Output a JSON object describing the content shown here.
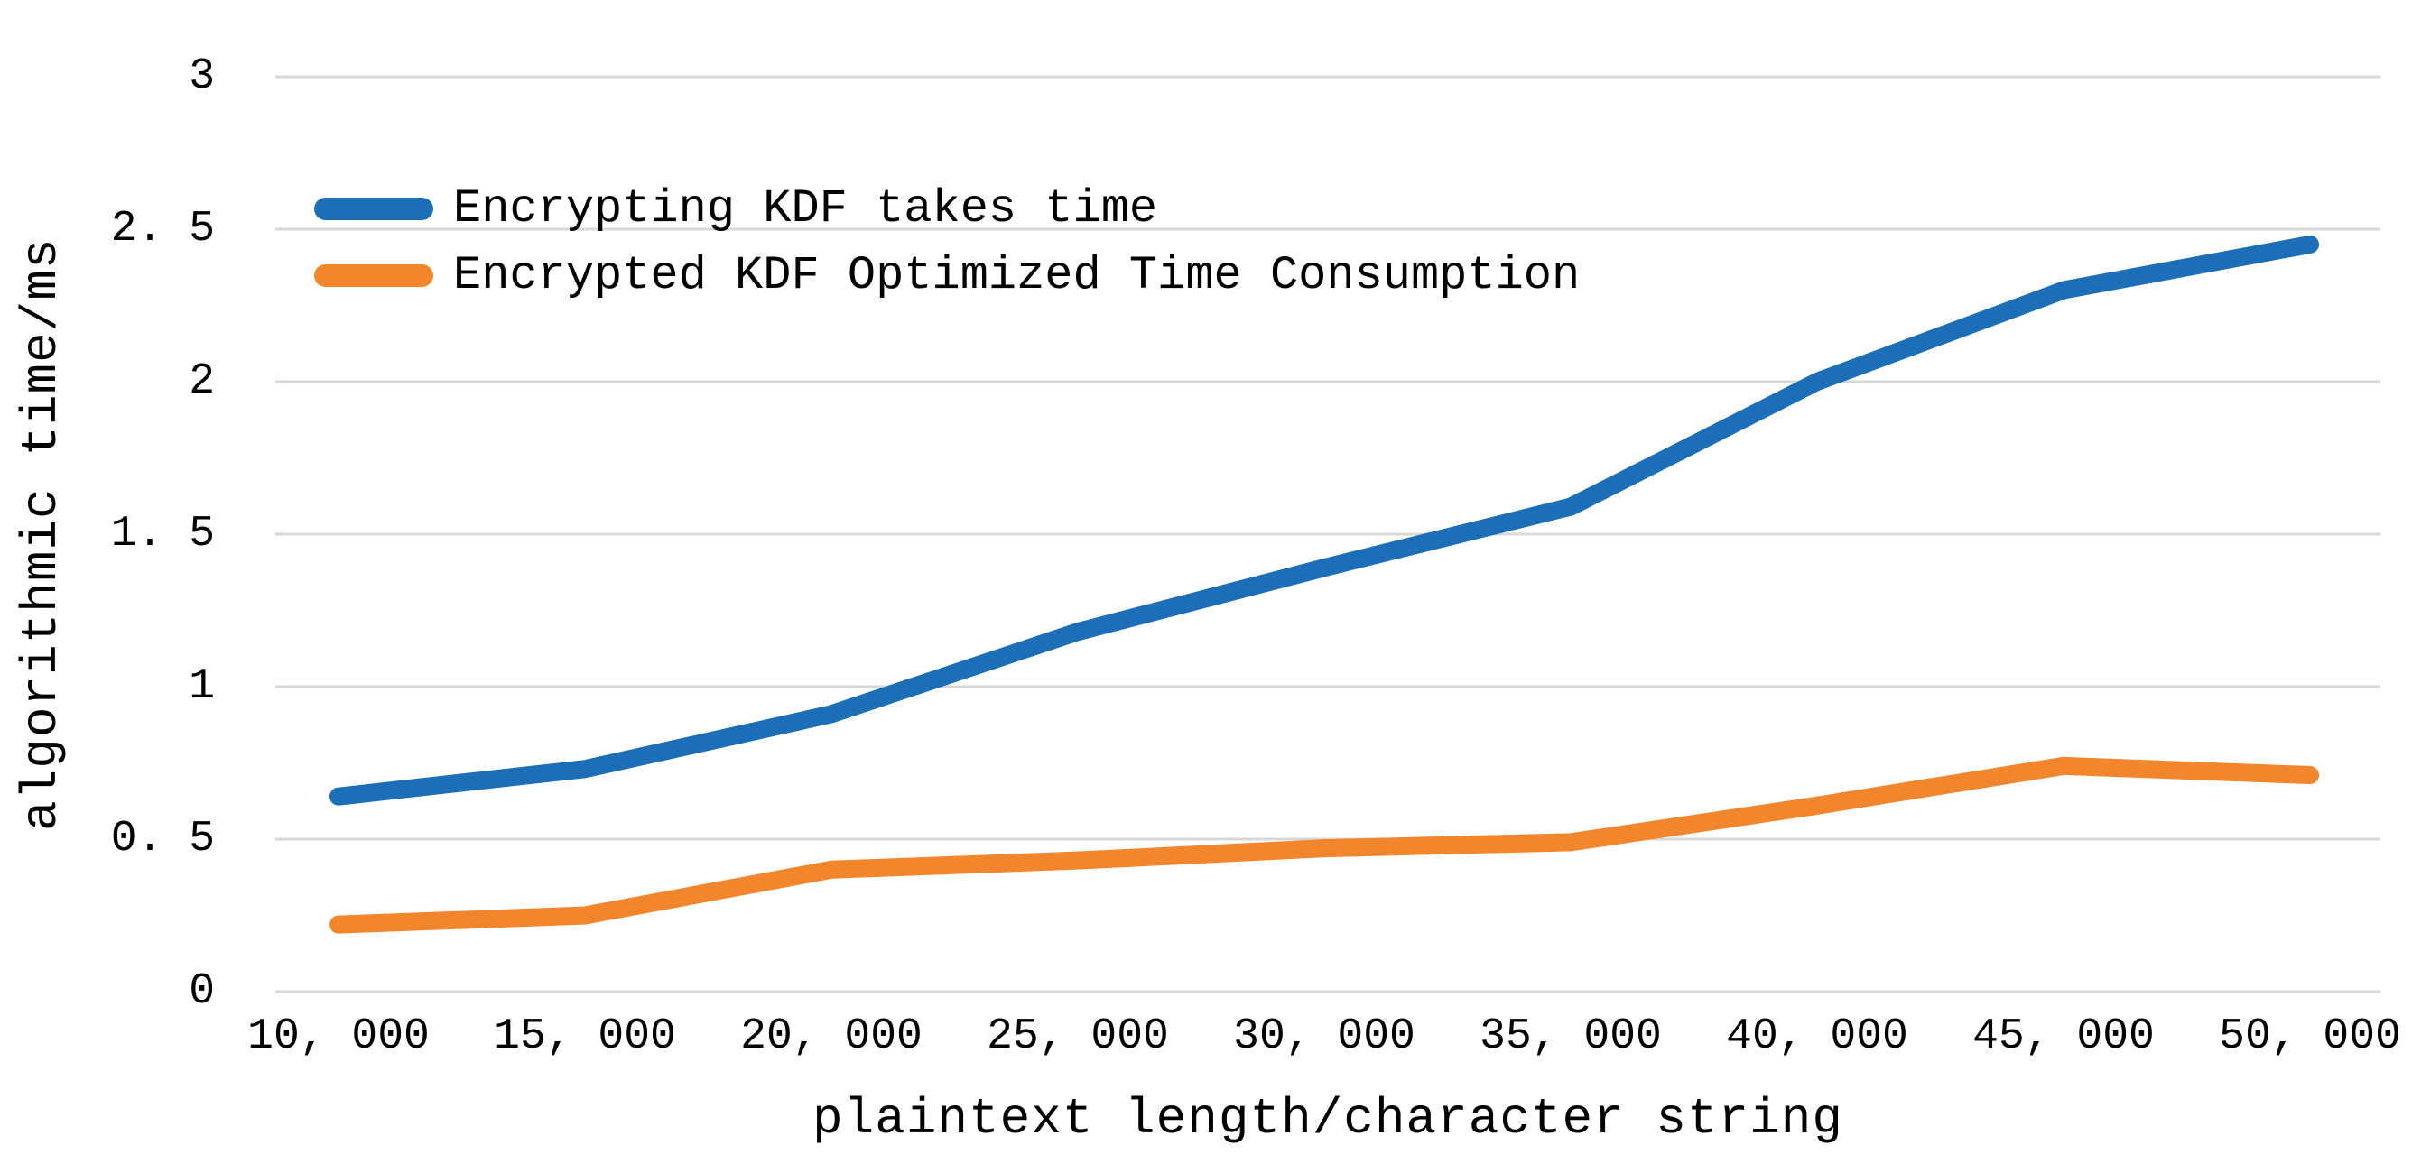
{
  "chart_data": {
    "type": "line",
    "x_label": "plaintext length/character string",
    "y_label": "algorithmic time/ms",
    "categories": [
      "10,000",
      "15,000",
      "20,000",
      "25,000",
      "30,000",
      "35,000",
      "40,000",
      "45,000",
      "50,000"
    ],
    "x_tick_labels": [
      "10, 000",
      "15, 000",
      "20, 000",
      "25, 000",
      "30, 000",
      "35, 000",
      "40, 000",
      "45, 000",
      "50, 000"
    ],
    "series": [
      {
        "name": "Encrypting KDF takes time",
        "color": "#1c6eb7",
        "values": [
          0.64,
          0.73,
          0.91,
          1.18,
          1.39,
          1.59,
          2.0,
          2.3,
          2.45
        ]
      },
      {
        "name": "Encrypted KDF Optimized Time Consumption",
        "color": "#f1862d",
        "values": [
          0.22,
          0.25,
          0.4,
          0.43,
          0.47,
          0.49,
          0.61,
          0.74,
          0.71
        ]
      }
    ],
    "ylim": [
      0,
      3
    ],
    "yticks": [
      {
        "value": 0,
        "label": "0"
      },
      {
        "value": 0.5,
        "label": "0. 5"
      },
      {
        "value": 1,
        "label": "1"
      },
      {
        "value": 1.5,
        "label": "1. 5"
      },
      {
        "value": 2,
        "label": "2"
      },
      {
        "value": 2.5,
        "label": "2. 5"
      },
      {
        "value": 3,
        "label": "3"
      }
    ],
    "grid": true,
    "gridline_color": "#d8d8d8",
    "line_width": 20,
    "legend_position": "top-left",
    "text_color": "#000000"
  }
}
